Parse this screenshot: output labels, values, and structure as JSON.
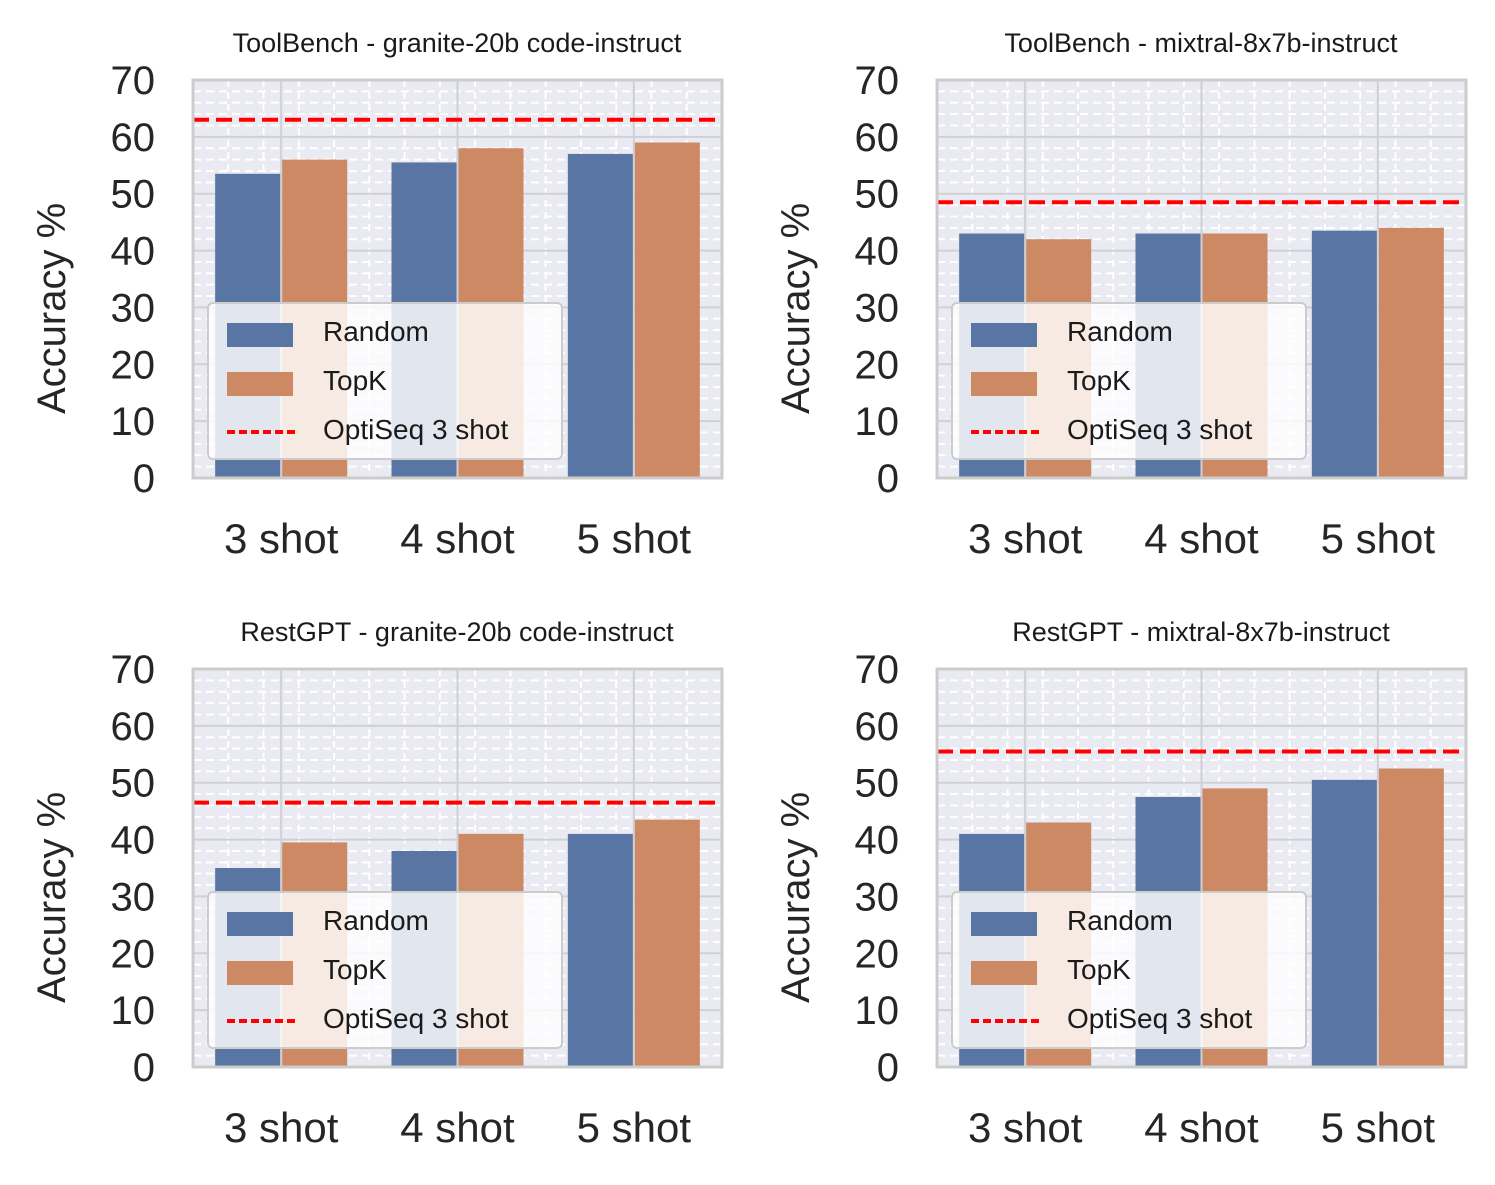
{
  "chart_data": [
    {
      "type": "bar",
      "title": "ToolBench - granite-20b code-instruct",
      "ylabel": "Accuracy %",
      "xlabel": "",
      "categories": [
        "3 shot",
        "4 shot",
        "5 shot"
      ],
      "ylim": [
        0,
        70
      ],
      "yticks": [
        "0",
        "10",
        "20",
        "30",
        "40",
        "50",
        "60",
        "70"
      ],
      "series": [
        {
          "name": "Random",
          "values": [
            53.5,
            55.5,
            57.0
          ],
          "color": "#5975a4"
        },
        {
          "name": "TopK",
          "values": [
            56.0,
            58.0,
            59.0
          ],
          "color": "#cc8963"
        }
      ],
      "reference_line": {
        "name": "OptiSeq 3 shot",
        "value": 63.0,
        "color": "#ff0000"
      },
      "legend": {
        "position": "lower-left",
        "entries": [
          "Random",
          "TopK",
          "OptiSeq 3 shot"
        ]
      }
    },
    {
      "type": "bar",
      "title": "ToolBench - mixtral-8x7b-instruct",
      "ylabel": "Accuracy %",
      "xlabel": "",
      "categories": [
        "3 shot",
        "4 shot",
        "5 shot"
      ],
      "ylim": [
        0,
        70
      ],
      "yticks": [
        "0",
        "10",
        "20",
        "30",
        "40",
        "50",
        "60",
        "70"
      ],
      "series": [
        {
          "name": "Random",
          "values": [
            43.0,
            43.0,
            43.5
          ],
          "color": "#5975a4"
        },
        {
          "name": "TopK",
          "values": [
            42.0,
            43.0,
            44.0
          ],
          "color": "#cc8963"
        }
      ],
      "reference_line": {
        "name": "OptiSeq 3 shot",
        "value": 48.5,
        "color": "#ff0000"
      },
      "legend": {
        "position": "lower-left",
        "entries": [
          "Random",
          "TopK",
          "OptiSeq 3 shot"
        ]
      }
    },
    {
      "type": "bar",
      "title": "RestGPT - granite-20b code-instruct",
      "ylabel": "Accuracy %",
      "xlabel": "",
      "categories": [
        "3 shot",
        "4 shot",
        "5 shot"
      ],
      "ylim": [
        0,
        70
      ],
      "yticks": [
        "0",
        "10",
        "20",
        "30",
        "40",
        "50",
        "60",
        "70"
      ],
      "series": [
        {
          "name": "Random",
          "values": [
            35.0,
            38.0,
            41.0
          ],
          "color": "#5975a4"
        },
        {
          "name": "TopK",
          "values": [
            39.5,
            41.0,
            43.5
          ],
          "color": "#cc8963"
        }
      ],
      "reference_line": {
        "name": "OptiSeq 3 shot",
        "value": 46.5,
        "color": "#ff0000"
      },
      "legend": {
        "position": "lower-left",
        "entries": [
          "Random",
          "TopK",
          "OptiSeq 3 shot"
        ]
      }
    },
    {
      "type": "bar",
      "title": "RestGPT - mixtral-8x7b-instruct",
      "ylabel": "Accuracy %",
      "xlabel": "",
      "categories": [
        "3 shot",
        "4 shot",
        "5 shot"
      ],
      "ylim": [
        0,
        70
      ],
      "yticks": [
        "0",
        "10",
        "20",
        "30",
        "40",
        "50",
        "60",
        "70"
      ],
      "series": [
        {
          "name": "Random",
          "values": [
            41.0,
            47.5,
            50.5
          ],
          "color": "#5975a4"
        },
        {
          "name": "TopK",
          "values": [
            43.0,
            49.0,
            52.5
          ],
          "color": "#cc8963"
        }
      ],
      "reference_line": {
        "name": "OptiSeq 3 shot",
        "value": 55.5,
        "color": "#ff0000"
      },
      "legend": {
        "position": "lower-left",
        "entries": [
          "Random",
          "TopK",
          "OptiSeq 3 shot"
        ]
      }
    }
  ]
}
